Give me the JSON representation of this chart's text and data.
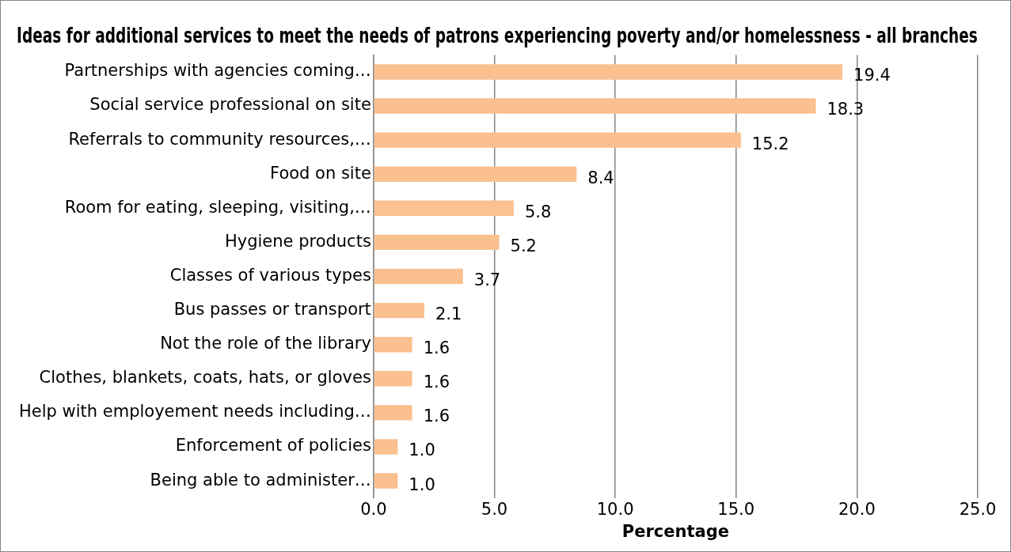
{
  "chart_data": {
    "type": "bar",
    "orientation": "horizontal",
    "title": "Ideas for additional services to meet the needs of patrons experiencing poverty and/or homelessness - all branches",
    "xlabel": "Percentage",
    "categories": [
      "Partnerships with agencies coming…",
      "Social service professional on site",
      "Referrals to community resources,…",
      "Food on site",
      "Room for eating, sleeping, visiting,…",
      "Hygiene products",
      "Classes of various types",
      "Bus passes or transport",
      "Not the role of the library",
      "Clothes, blankets, coats, hats, or gloves",
      "Help with employement needs including…",
      "Enforcement of policies",
      "Being able to administer…"
    ],
    "values": [
      19.4,
      18.3,
      15.2,
      8.4,
      5.8,
      5.2,
      3.7,
      2.1,
      1.6,
      1.6,
      1.6,
      1.0,
      1.0
    ],
    "value_labels": [
      "19.4",
      "18.3",
      "15.2",
      "8.4",
      "5.8",
      "5.2",
      "3.7",
      "2.1",
      "1.6",
      "1.6",
      "1.6",
      "1.0",
      "1.0"
    ],
    "color": "#fac090",
    "xlim": [
      0,
      25
    ],
    "xticks": [
      {
        "value": 0,
        "label": "0.0"
      },
      {
        "value": 5,
        "label": "5.0"
      },
      {
        "value": 10,
        "label": "10.0"
      },
      {
        "value": 15,
        "label": "15.0"
      },
      {
        "value": 20,
        "label": "20.0"
      },
      {
        "value": 25,
        "label": "25.0"
      }
    ],
    "grid": "x",
    "legend": false
  }
}
